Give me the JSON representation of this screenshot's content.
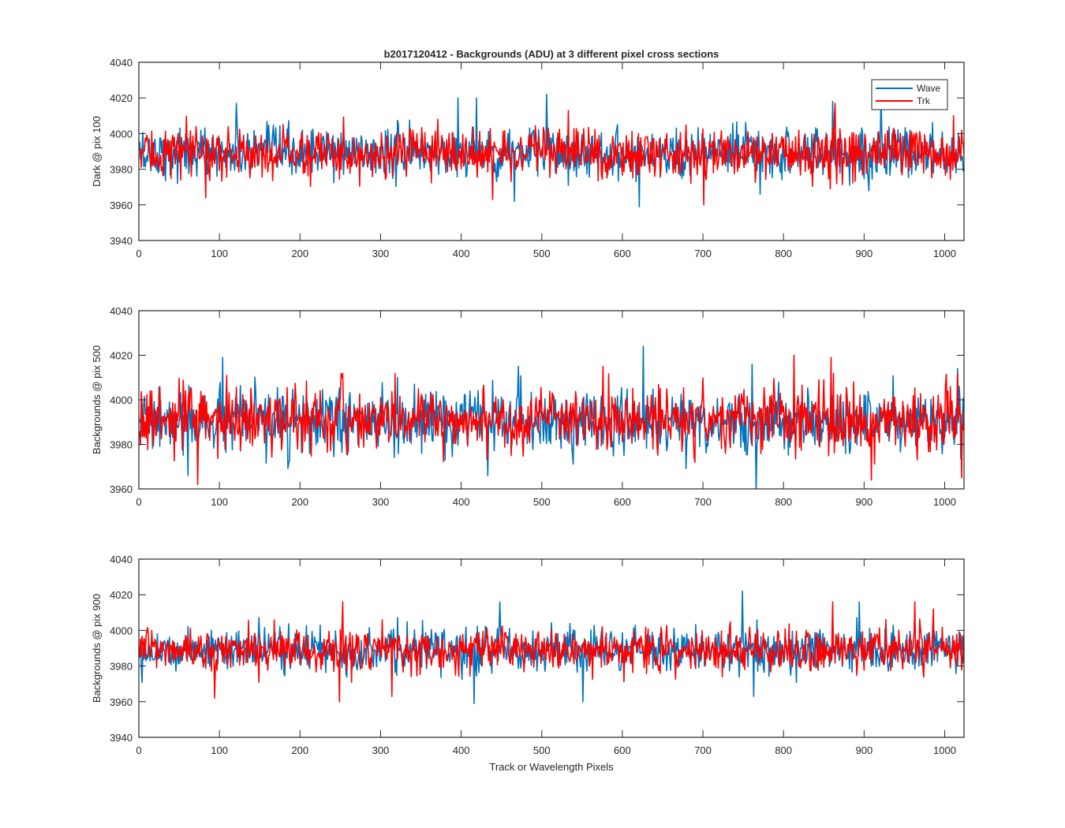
{
  "figure": {
    "title": "b2017120412 - Backgrounds (ADU) at 3 different pixel cross sections",
    "xlabel": "Track or Wavelength Pixels"
  },
  "legend": {
    "position": "top-right",
    "entries": [
      {
        "label": "Wave",
        "color": "#0072BD"
      },
      {
        "label": "Trk",
        "color": "#FF0000"
      }
    ]
  },
  "colors": {
    "wave": "#0072BD",
    "trk": "#FF0000",
    "axis": "#262626"
  },
  "chart_data": [
    {
      "type": "line",
      "ylabel": "Dark @ pix 100",
      "xlim": [
        0,
        1024
      ],
      "ylim": [
        3940,
        4040
      ],
      "xticks": [
        0,
        100,
        200,
        300,
        400,
        500,
        600,
        700,
        800,
        900,
        1000
      ],
      "yticks": [
        3940,
        3960,
        3980,
        4000,
        4020,
        4040
      ],
      "grid": false,
      "series": [
        {
          "name": "Wave",
          "color": "#0072BD",
          "num_points": 1024,
          "mean": 3989,
          "spread": 8,
          "peaks": [
            [
              120,
              4017
            ],
            [
              395,
              4020
            ],
            [
              418,
              4020
            ],
            [
              505,
              4022
            ],
            [
              860,
              4018
            ],
            [
              920,
              4021
            ]
          ],
          "troughs": [
            [
              465,
              3962
            ],
            [
              620,
              3959
            ],
            [
              770,
              3966
            ],
            [
              905,
              3968
            ]
          ]
        },
        {
          "name": "Trk",
          "color": "#FF0000",
          "num_points": 1024,
          "mean": 3989,
          "spread": 8,
          "peaks": [
            [
              370,
              4008
            ],
            [
              532,
              4013
            ],
            [
              863,
              4017
            ],
            [
              1010,
              4010
            ]
          ],
          "troughs": [
            [
              82,
              3964
            ],
            [
              438,
              3963
            ],
            [
              700,
              3960
            ]
          ]
        }
      ]
    },
    {
      "type": "line",
      "ylabel": "Backgrounds @ pix 500",
      "xlim": [
        0,
        1024
      ],
      "ylim": [
        3960,
        4040
      ],
      "xticks": [
        0,
        100,
        200,
        300,
        400,
        500,
        600,
        700,
        800,
        900,
        1000
      ],
      "yticks": [
        3960,
        3980,
        4000,
        4020,
        4040
      ],
      "grid": false,
      "series": [
        {
          "name": "Wave",
          "color": "#0072BD",
          "num_points": 1024,
          "mean": 3990,
          "spread": 8,
          "peaks": [
            [
              103,
              4019
            ],
            [
              470,
              4015
            ],
            [
              625,
              4024
            ],
            [
              760,
              4016
            ],
            [
              1015,
              4014
            ]
          ],
          "troughs": [
            [
              60,
              3966
            ],
            [
              432,
              3966
            ],
            [
              765,
              3959
            ]
          ]
        },
        {
          "name": "Trk",
          "color": "#FF0000",
          "num_points": 1024,
          "mean": 3991,
          "spread": 8,
          "peaks": [
            [
              108,
              4011
            ],
            [
              575,
              4015
            ],
            [
              812,
              4020
            ],
            [
              858,
              4019
            ]
          ],
          "troughs": [
            [
              72,
              3962
            ],
            [
              908,
              3964
            ],
            [
              1020,
              3965
            ]
          ]
        }
      ]
    },
    {
      "type": "line",
      "ylabel": "Backgrounds @ pix 900",
      "xlim": [
        0,
        1024
      ],
      "ylim": [
        3940,
        4040
      ],
      "xticks": [
        0,
        100,
        200,
        300,
        400,
        500,
        600,
        700,
        800,
        900,
        1000
      ],
      "yticks": [
        3940,
        3960,
        3980,
        4000,
        4020,
        4040
      ],
      "grid": false,
      "series": [
        {
          "name": "Wave",
          "color": "#0072BD",
          "num_points": 1024,
          "mean": 3989,
          "spread": 7,
          "peaks": [
            [
              447,
              4016
            ],
            [
              748,
              4022
            ],
            [
              893,
              4016
            ]
          ],
          "troughs": [
            [
              415,
              3959
            ],
            [
              550,
              3960
            ],
            [
              762,
              3963
            ]
          ]
        },
        {
          "name": "Trk",
          "color": "#FF0000",
          "num_points": 1024,
          "mean": 3989,
          "spread": 7,
          "peaks": [
            [
              252,
              4016
            ],
            [
              860,
              4016
            ],
            [
              962,
              4016
            ],
            [
              985,
              4012
            ]
          ],
          "troughs": [
            [
              93,
              3962
            ],
            [
              248,
              3960
            ],
            [
              313,
              3963
            ]
          ]
        }
      ]
    }
  ]
}
